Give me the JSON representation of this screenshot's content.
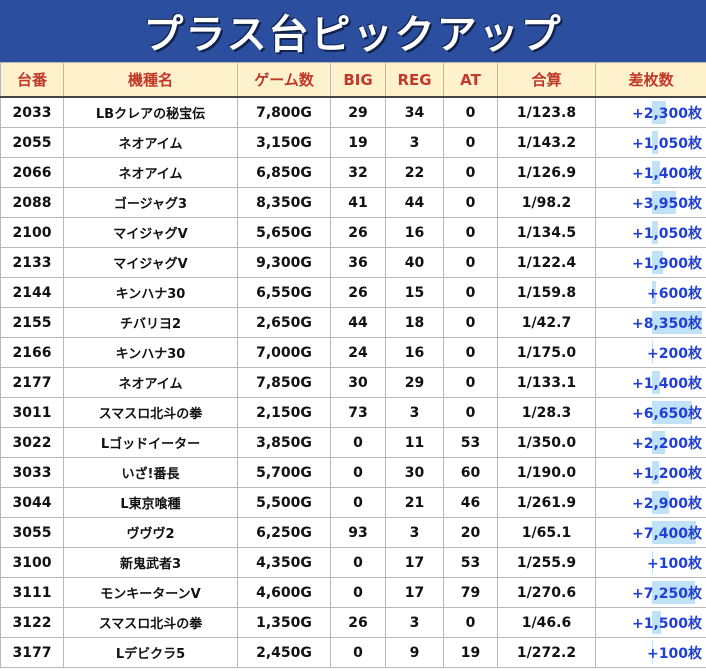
{
  "title": "プラス台ピックアップ",
  "headers": [
    "台番",
    "機種名",
    "ゲーム数",
    "BIG",
    "REG",
    "AT",
    "合算",
    "差枚数"
  ],
  "rows": [
    {
      "no": "2033",
      "machine": "LBクレアの秘宝伝",
      "games": "7,800G",
      "big": "29",
      "reg": "34",
      "at": "0",
      "ratio": "1/123.8",
      "diff": "+2,300枚",
      "diff_value": 2300
    },
    {
      "no": "2055",
      "machine": "ネオアイム",
      "games": "3,150G",
      "big": "19",
      "reg": "3",
      "at": "0",
      "ratio": "1/143.2",
      "diff": "+1,050枚",
      "diff_value": 1050
    },
    {
      "no": "2066",
      "machine": "ネオアイム",
      "games": "6,850G",
      "big": "32",
      "reg": "22",
      "at": "0",
      "ratio": "1/126.9",
      "diff": "+1,400枚",
      "diff_value": 1400
    },
    {
      "no": "2088",
      "machine": "ゴージャグ3",
      "games": "8,350G",
      "big": "41",
      "reg": "44",
      "at": "0",
      "ratio": "1/98.2",
      "diff": "+3,950枚",
      "diff_value": 3950
    },
    {
      "no": "2100",
      "machine": "マイジャグV",
      "games": "5,650G",
      "big": "26",
      "reg": "16",
      "at": "0",
      "ratio": "1/134.5",
      "diff": "+1,050枚",
      "diff_value": 1050
    },
    {
      "no": "2133",
      "machine": "マイジャグV",
      "games": "9,300G",
      "big": "36",
      "reg": "40",
      "at": "0",
      "ratio": "1/122.4",
      "diff": "+1,900枚",
      "diff_value": 1900
    },
    {
      "no": "2144",
      "machine": "キンハナ30",
      "games": "6,550G",
      "big": "26",
      "reg": "15",
      "at": "0",
      "ratio": "1/159.8",
      "diff": "+600枚",
      "diff_value": 600
    },
    {
      "no": "2155",
      "machine": "チバリヨ2",
      "games": "2,650G",
      "big": "44",
      "reg": "18",
      "at": "0",
      "ratio": "1/42.7",
      "diff": "+8,350枚",
      "diff_value": 8350
    },
    {
      "no": "2166",
      "machine": "キンハナ30",
      "games": "7,000G",
      "big": "24",
      "reg": "16",
      "at": "0",
      "ratio": "1/175.0",
      "diff": "+200枚",
      "diff_value": 200
    },
    {
      "no": "2177",
      "machine": "ネオアイム",
      "games": "7,850G",
      "big": "30",
      "reg": "29",
      "at": "0",
      "ratio": "1/133.1",
      "diff": "+1,400枚",
      "diff_value": 1400
    },
    {
      "no": "3011",
      "machine": "スマスロ北斗の拳",
      "games": "2,150G",
      "big": "73",
      "reg": "3",
      "at": "0",
      "ratio": "1/28.3",
      "diff": "+6,650枚",
      "diff_value": 6650
    },
    {
      "no": "3022",
      "machine": "Lゴッドイーター",
      "games": "3,850G",
      "big": "0",
      "reg": "11",
      "at": "53",
      "ratio": "1/350.0",
      "diff": "+2,200枚",
      "diff_value": 2200
    },
    {
      "no": "3033",
      "machine": "いざ!番長",
      "games": "5,700G",
      "big": "0",
      "reg": "30",
      "at": "60",
      "ratio": "1/190.0",
      "diff": "+1,200枚",
      "diff_value": 1200
    },
    {
      "no": "3044",
      "machine": "L東京喰種",
      "games": "5,500G",
      "big": "0",
      "reg": "21",
      "at": "46",
      "ratio": "1/261.9",
      "diff": "+2,900枚",
      "diff_value": 2900
    },
    {
      "no": "3055",
      "machine": "ヴヴヴ2",
      "games": "6,250G",
      "big": "93",
      "reg": "3",
      "at": "20",
      "ratio": "1/65.1",
      "diff": "+7,400枚",
      "diff_value": 7400
    },
    {
      "no": "3100",
      "machine": "新鬼武者3",
      "games": "4,350G",
      "big": "0",
      "reg": "17",
      "at": "53",
      "ratio": "1/255.9",
      "diff": "+100枚",
      "diff_value": 100
    },
    {
      "no": "3111",
      "machine": "モンキーターンV",
      "games": "4,600G",
      "big": "0",
      "reg": "17",
      "at": "79",
      "ratio": "1/270.6",
      "diff": "+7,250枚",
      "diff_value": 7250
    },
    {
      "no": "3122",
      "machine": "スマスロ北斗の拳",
      "games": "1,350G",
      "big": "26",
      "reg": "3",
      "at": "0",
      "ratio": "1/46.6",
      "diff": "+1,500枚",
      "diff_value": 1500
    },
    {
      "no": "3177",
      "machine": "Lデビクラ5",
      "games": "2,450G",
      "big": "0",
      "reg": "9",
      "at": "19",
      "ratio": "1/272.2",
      "diff": "+100枚",
      "diff_value": 100
    }
  ],
  "colors": {
    "banner": "#2b4f9e",
    "header_bg": "#fdf2cc",
    "header_text": "#c0392b",
    "diff_text": "#1f3fd6",
    "bar": "#bfe2f7"
  }
}
